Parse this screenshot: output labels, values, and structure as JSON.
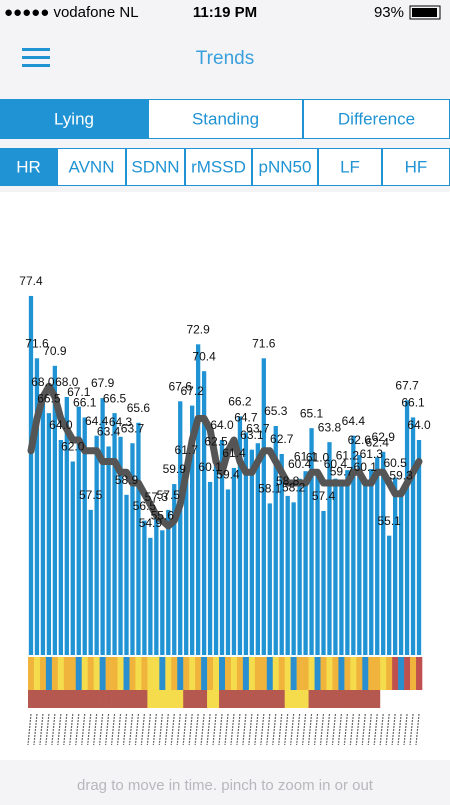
{
  "status_bar": {
    "carrier": "●●●●● vodafone NL",
    "time": "11:19 PM",
    "battery": "93%"
  },
  "header": {
    "title": "Trends"
  },
  "tabs": {
    "items": [
      "Lying",
      "Standing",
      "Difference"
    ],
    "selected": 0
  },
  "subtabs": {
    "items": [
      "HR",
      "AVNN",
      "SDNN",
      "rMSSD",
      "pNN50",
      "LF",
      "HF"
    ],
    "selected": 0
  },
  "chart_data": {
    "type": "bar",
    "values": [
      77.4,
      71.6,
      68.0,
      66.5,
      70.9,
      64.0,
      68.0,
      62.0,
      67.1,
      66.1,
      57.5,
      64.4,
      67.9,
      63.4,
      66.5,
      64.3,
      58.9,
      63.7,
      65.6,
      56.5,
      54.9,
      57.3,
      55.6,
      57.5,
      59.9,
      67.6,
      61.7,
      67.2,
      72.9,
      70.4,
      60.1,
      62.5,
      64.0,
      59.4,
      61.4,
      66.2,
      64.7,
      63.1,
      63.7,
      71.6,
      58.1,
      65.3,
      62.7,
      58.8,
      58.2,
      60.4,
      61.1,
      65.1,
      61.0,
      57.4,
      63.8,
      60.4,
      59.7,
      61.2,
      64.4,
      62.6,
      60.1,
      61.3,
      62.4,
      62.9,
      55.1,
      60.5,
      59.3,
      67.7,
      66.1,
      64.0
    ],
    "value_labels": [
      "77.4",
      "71.6",
      "68.0",
      "66.5",
      "70.9",
      "64.0",
      "68.0",
      "62.0",
      "67.1",
      "66.1",
      "57.5",
      "64.4",
      "67.9",
      "63.4",
      "66.5",
      "64.3",
      "58.9",
      "63.7",
      "65.6",
      "56.5",
      "54.9",
      "57.3",
      "55.6",
      "57.5",
      "59.9",
      "67.6",
      "61.7",
      "67.2",
      "72.9",
      "70.4",
      "60.1",
      "62.5",
      "64.0",
      "59.4",
      "61.4",
      "66.2",
      "64.7",
      "63.1",
      "63.7",
      "71.6",
      "58.1",
      "65.3",
      "62.7",
      "58.8",
      "58.2",
      "60.4",
      "61.1",
      "65.1",
      "61.0",
      "57.4",
      "63.8",
      "60.4",
      "59.7",
      "61.2",
      "64.4",
      "62.6",
      "60.1",
      "61.3",
      "62.4",
      "62.9",
      "55.1",
      "60.5",
      "59.3",
      "67.7",
      "66.1",
      "64.0"
    ],
    "color": "#1f93d3",
    "trend": {
      "color": "#555555",
      "values": [
        63,
        66,
        68,
        69,
        68,
        66,
        65,
        64,
        64,
        63,
        63,
        63,
        62,
        62,
        62,
        61,
        61,
        60,
        60,
        59,
        58,
        57,
        56.5,
        56,
        56.5,
        58,
        61,
        64,
        66,
        66,
        65,
        62,
        61,
        63,
        64,
        62,
        61,
        61,
        62,
        63,
        63,
        62,
        61,
        60,
        60,
        60,
        60,
        61,
        61,
        60,
        60,
        60,
        60,
        60,
        61,
        61,
        60,
        60,
        61,
        61,
        60,
        59,
        59,
        60,
        61,
        62
      ]
    },
    "ylim": [
      44,
      80
    ],
    "strips": [
      [
        "#f0b43c",
        "#f4dc4c",
        "#f0b43c",
        "#2a8fcf",
        "#f0b43c",
        "#f4dc4c",
        "#f0b43c",
        "#f0b43c",
        "#2a8fcf",
        "#f4dc4c",
        "#f0b43c",
        "#f4dc4c",
        "#2a8fcf",
        "#f0b43c",
        "#f0b43c",
        "#f4dc4c",
        "#2a8fcf",
        "#f0b43c",
        "#f4dc4c",
        "#f0b43c",
        "#f4dc4c",
        "#f4dc4c",
        "#2a8fcf",
        "#f4dc4c",
        "#f0b43c",
        "#2a8fcf",
        "#f0b43c",
        "#f4dc4c",
        "#f0b43c",
        "#2a8fcf",
        "#f0b43c",
        "#f4dc4c",
        "#2a8fcf",
        "#f0b43c",
        "#f4dc4c",
        "#f0b43c",
        "#2a8fcf",
        "#f4dc4c",
        "#f0b43c",
        "#f0b43c",
        "#2a8fcf",
        "#f4dc4c",
        "#f0b43c",
        "#f4dc4c",
        "#2a8fcf",
        "#f0b43c",
        "#f0b43c",
        "#f4dc4c",
        "#2a8fcf",
        "#f0b43c",
        "#f4dc4c",
        "#f0b43c",
        "#2a8fcf",
        "#f0b43c",
        "#f4dc4c",
        "#f0b43c",
        "#2a8fcf",
        "#f0b43c",
        "#f0b43c",
        "#f4dc4c",
        "#f0b43c",
        "#c0504d",
        "#2a8fcf",
        "#c0504d",
        "#f0b43c",
        "#c0504d"
      ],
      [
        "#b5584f",
        "#b5584f",
        "#b5584f",
        "#b5584f",
        "#b5584f",
        "#b5584f",
        "#b5584f",
        "#b5584f",
        "#b5584f",
        "#b5584f",
        "#b5584f",
        "#b5584f",
        "#b5584f",
        "#b5584f",
        "#b5584f",
        "#b5584f",
        "#b5584f",
        "#b5584f",
        "#b5584f",
        "#b5584f",
        "#f4dc4c",
        "#f4dc4c",
        "#f4dc4c",
        "#f4dc4c",
        "#f4dc4c",
        "#f4dc4c",
        "#b5584f",
        "#b5584f",
        "#b5584f",
        "#b5584f",
        "#f4dc4c",
        "#f4dc4c",
        "#b5584f",
        "#b5584f",
        "#b5584f",
        "#b5584f",
        "#b5584f",
        "#b5584f",
        "#b5584f",
        "#b5584f",
        "#b5584f",
        "#b5584f",
        "#b5584f",
        "#f4dc4c",
        "#f4dc4c",
        "#f4dc4c",
        "#f4dc4c",
        "#b5584f",
        "#b5584f",
        "#b5584f",
        "#b5584f",
        "#b5584f",
        "#b5584f",
        "#b5584f",
        "#b5584f",
        "#b5584f",
        "#b5584f",
        "#b5584f",
        "#b5584f",
        "#ffffff",
        "#ffffff",
        "#ffffff",
        "#ffffff",
        "#ffffff",
        "#ffffff",
        "#ffffff"
      ]
    ]
  },
  "footer": {
    "hint": "drag to move in time. pinch to zoom in or out"
  }
}
